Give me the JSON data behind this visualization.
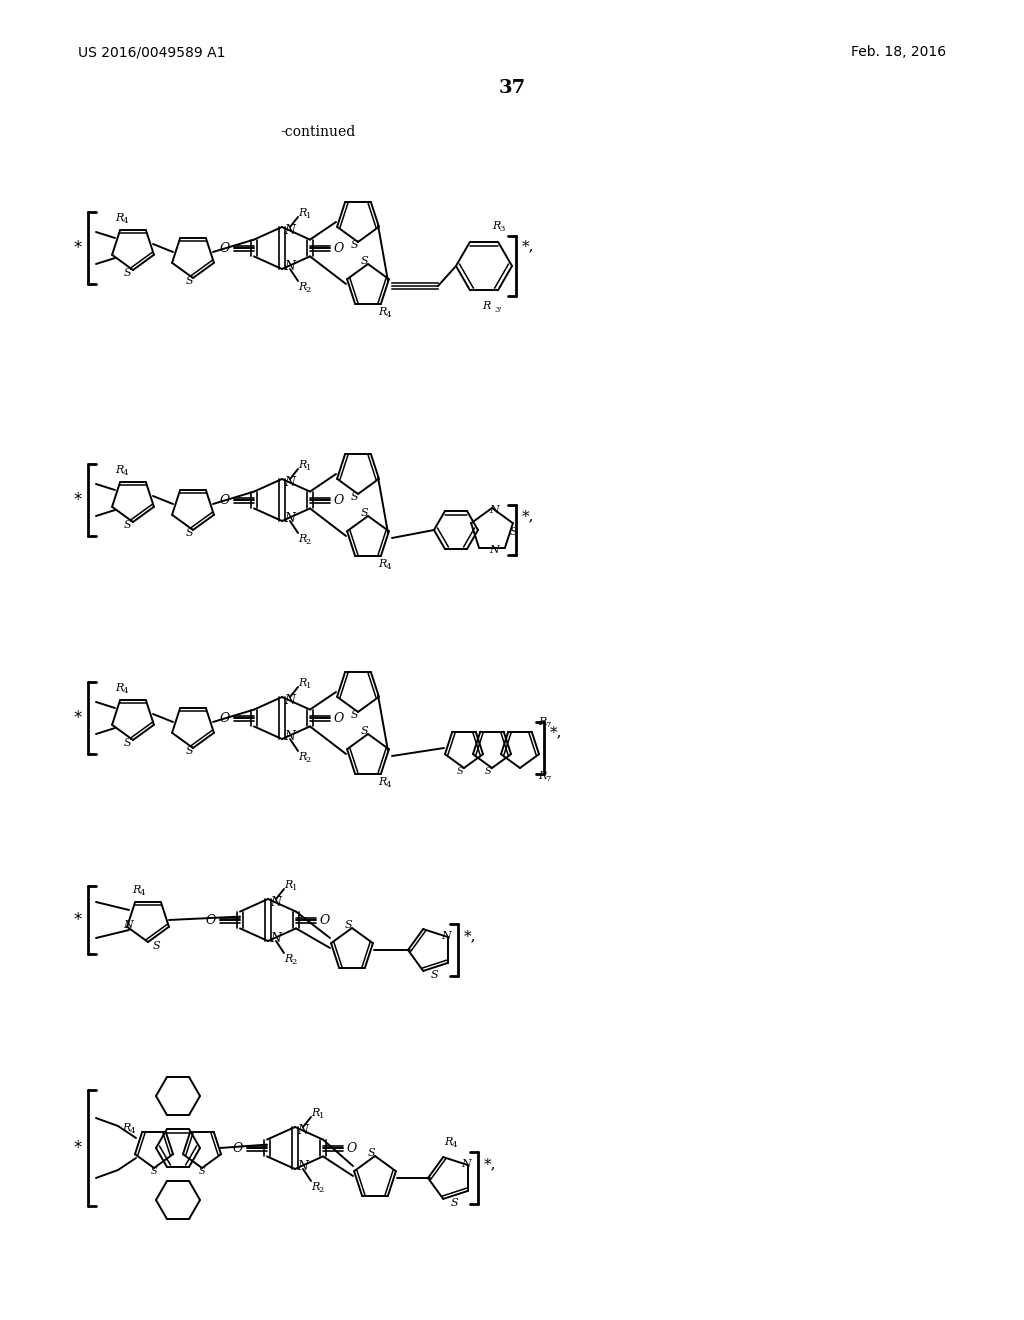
{
  "page_header_left": "US 2016/0049589 A1",
  "page_header_right": "Feb. 18, 2016",
  "page_number": "37",
  "continued_label": "-continued",
  "background_color": "#ffffff",
  "text_color": "#000000"
}
